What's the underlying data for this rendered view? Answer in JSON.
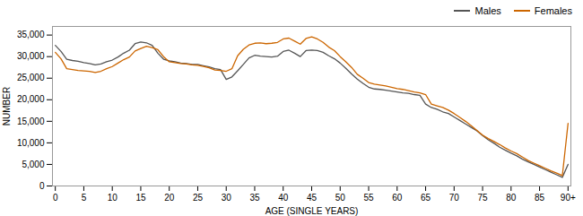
{
  "chart_data": {
    "type": "line",
    "xlabel": "AGE (SINGLE YEARS)",
    "ylabel": "NUMBER",
    "x": [
      0,
      1,
      2,
      3,
      4,
      5,
      6,
      7,
      8,
      9,
      10,
      11,
      12,
      13,
      14,
      15,
      16,
      17,
      18,
      19,
      20,
      21,
      22,
      23,
      24,
      25,
      26,
      27,
      28,
      29,
      30,
      31,
      32,
      33,
      34,
      35,
      36,
      37,
      38,
      39,
      40,
      41,
      42,
      43,
      44,
      45,
      46,
      47,
      48,
      49,
      50,
      51,
      52,
      53,
      54,
      55,
      56,
      57,
      58,
      59,
      60,
      61,
      62,
      63,
      64,
      65,
      66,
      67,
      68,
      69,
      70,
      71,
      72,
      73,
      74,
      75,
      76,
      77,
      78,
      79,
      80,
      81,
      82,
      83,
      84,
      85,
      86,
      87,
      88,
      89,
      90
    ],
    "xlim": [
      -0.5,
      90.5
    ],
    "xticks": [
      0,
      5,
      10,
      15,
      20,
      25,
      30,
      35,
      40,
      45,
      50,
      55,
      60,
      65,
      70,
      75,
      80,
      85,
      {
        "value": 90,
        "label": "90+"
      }
    ],
    "ylim": [
      0,
      37000
    ],
    "yticks": [
      0,
      {
        "value": 5000,
        "label": "5,000"
      },
      {
        "value": 10000,
        "label": "10,000"
      },
      {
        "value": 15000,
        "label": "15,000"
      },
      {
        "value": 20000,
        "label": "20,000"
      },
      {
        "value": 25000,
        "label": "25,000"
      },
      {
        "value": 30000,
        "label": "30,000"
      },
      {
        "value": 35000,
        "label": "35,000"
      }
    ],
    "grid": false,
    "legend": "upper right",
    "series": [
      {
        "name": "Males",
        "color": "#555555",
        "values": [
          32600,
          31200,
          29400,
          29100,
          28900,
          28600,
          28400,
          28100,
          28300,
          28800,
          29200,
          29900,
          30800,
          31500,
          33000,
          33400,
          33200,
          32600,
          30800,
          29400,
          29000,
          28800,
          28500,
          28400,
          28200,
          28200,
          27900,
          27600,
          27200,
          27000,
          24700,
          25300,
          26700,
          28200,
          29700,
          30300,
          30100,
          30000,
          29900,
          30100,
          31200,
          31500,
          30800,
          30000,
          31400,
          31500,
          31400,
          31000,
          30200,
          29500,
          28500,
          27300,
          26000,
          24800,
          23800,
          22900,
          22500,
          22400,
          22200,
          22000,
          21800,
          21600,
          21500,
          21200,
          21000,
          19000,
          18200,
          17800,
          17200,
          16800,
          16000,
          15200,
          14400,
          13600,
          12800,
          11700,
          10700,
          9900,
          9000,
          8300,
          7600,
          7000,
          6200,
          5600,
          5000,
          4400,
          3800,
          3200,
          2600,
          2000,
          5000
        ]
      },
      {
        "name": "Females",
        "color": "#cc6600",
        "values": [
          31000,
          29500,
          27200,
          27000,
          26800,
          26700,
          26600,
          26300,
          26600,
          27200,
          27700,
          28500,
          29300,
          29900,
          31300,
          31900,
          32400,
          32100,
          31600,
          30000,
          28800,
          28600,
          28400,
          28300,
          28100,
          28000,
          27700,
          27400,
          26900,
          26800,
          26600,
          27200,
          30200,
          31700,
          32700,
          33100,
          33200,
          33000,
          33100,
          33300,
          34100,
          34300,
          33600,
          32900,
          34200,
          34600,
          34100,
          33300,
          32200,
          31400,
          30000,
          28800,
          27500,
          25900,
          25000,
          24000,
          23600,
          23400,
          23200,
          22900,
          22600,
          22400,
          22100,
          21800,
          21600,
          21200,
          19000,
          18600,
          18200,
          17600,
          16800,
          15900,
          15000,
          14000,
          12900,
          11800,
          11000,
          10300,
          9600,
          8800,
          8100,
          7500,
          6700,
          5900,
          5300,
          4700,
          4100,
          3500,
          3000,
          2400,
          14500
        ]
      }
    ]
  }
}
